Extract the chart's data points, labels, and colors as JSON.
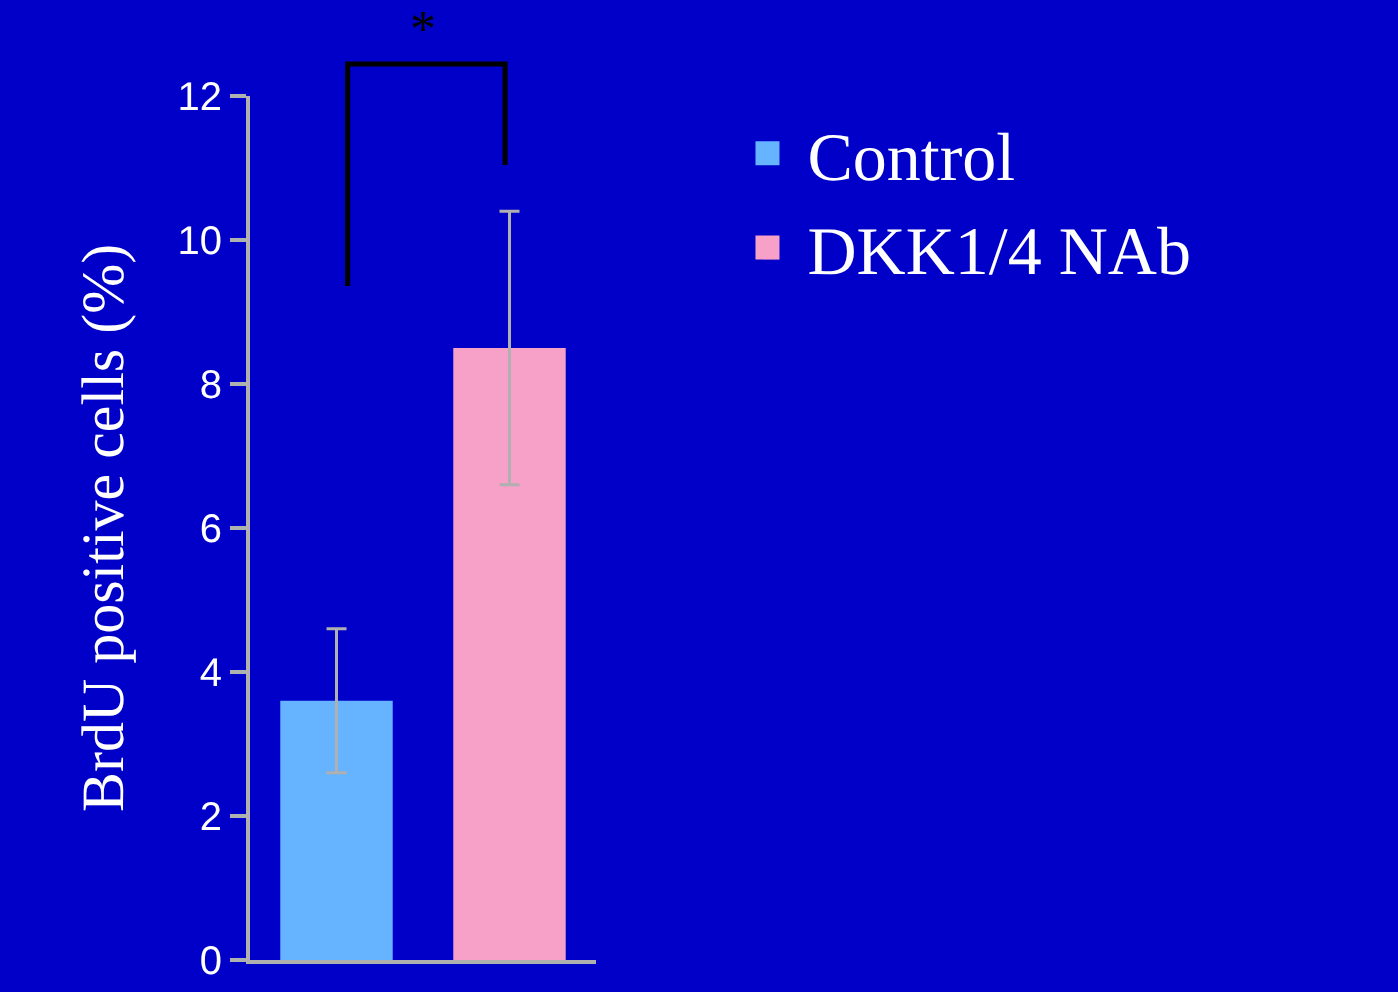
{
  "chart_data": {
    "type": "bar",
    "ylabel": "BrdU positive cells (%)",
    "categories": [
      null,
      null
    ],
    "series": [
      {
        "name": "Control",
        "color": "#66b3ff",
        "values": [
          3.6,
          null
        ],
        "errors": [
          1.0,
          null
        ]
      },
      {
        "name": "DKK1/4 NAb",
        "color": "#f7a1c8",
        "values": [
          null,
          8.5
        ],
        "errors": [
          null,
          1.9
        ]
      }
    ],
    "ylim": [
      0,
      12
    ],
    "yticks": [
      0,
      2,
      4,
      6,
      8,
      10,
      12
    ],
    "grid": false,
    "legend": "top right",
    "tick_labels": "y",
    "annotations": [
      "*"
    ]
  }
}
